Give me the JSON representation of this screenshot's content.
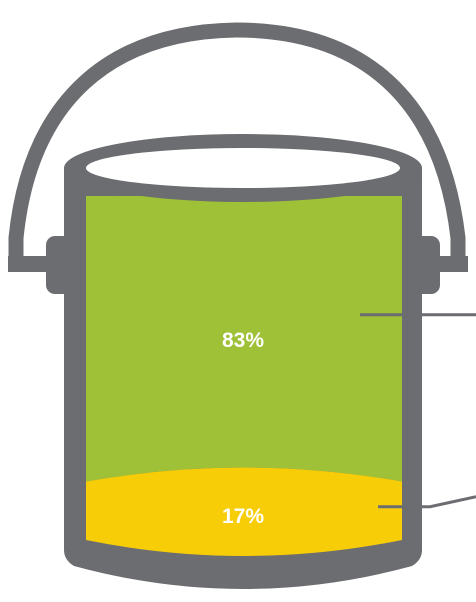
{
  "chart_data": {
    "type": "bar",
    "style": "stacked-paint-can",
    "series": [
      {
        "value": 83,
        "label": "83%",
        "color": "#9ec138"
      },
      {
        "value": 17,
        "label": "17%",
        "color": "#f7cd08"
      }
    ],
    "total": 100,
    "legend": "none",
    "grid": false,
    "colors": {
      "can_outline": "#6b6d70",
      "leader_line": "#6b6d70",
      "background": "#ffffff"
    }
  }
}
